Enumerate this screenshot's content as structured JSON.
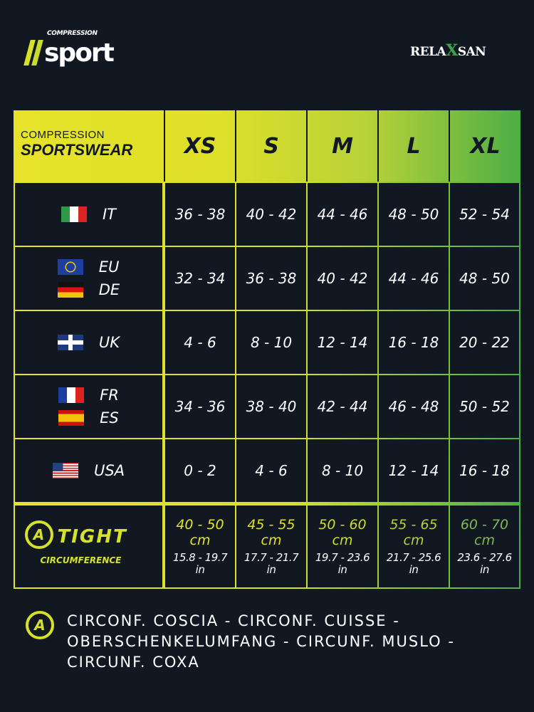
{
  "header": {
    "brand_logo": {
      "top": "COMPRESSION",
      "main": "sport"
    },
    "partner_logo": {
      "left": "RELA",
      "x": "X",
      "right": "SAN"
    }
  },
  "table": {
    "title_line1": "COMPRESSION",
    "title_line2": "SPORTSWEAR",
    "sizes": [
      "XS",
      "S",
      "M",
      "L",
      "XL"
    ],
    "rows": [
      {
        "countries": [
          "IT"
        ],
        "flags": [
          "flag-italy"
        ],
        "values": [
          "36 - 38",
          "40 - 42",
          "44 - 46",
          "48 - 50",
          "52 - 54"
        ]
      },
      {
        "countries": [
          "EU",
          "DE"
        ],
        "flags": [
          "flag-eu",
          "flag-germany"
        ],
        "values": [
          "32 - 34",
          "36 - 38",
          "40 - 42",
          "44 - 46",
          "48 - 50"
        ]
      },
      {
        "countries": [
          "UK"
        ],
        "flags": [
          "flag-uk"
        ],
        "values": [
          "4 - 6",
          "8 - 10",
          "12 - 14",
          "16 - 18",
          "20 - 22"
        ]
      },
      {
        "countries": [
          "FR",
          "ES"
        ],
        "flags": [
          "flag-france",
          "flag-spain"
        ],
        "values": [
          "34 - 36",
          "38 - 40",
          "42 - 44",
          "46 - 48",
          "50 - 52"
        ]
      },
      {
        "countries": [
          "USA"
        ],
        "flags": [
          "flag-usa"
        ],
        "values": [
          "0 - 2",
          "4 - 6",
          "8 - 10",
          "12 - 14",
          "16 - 18"
        ]
      }
    ],
    "tight": {
      "badge": "A",
      "label1": "TIGHT",
      "label2": "CIRCUMFERENCE",
      "cm": [
        "40 - 50",
        "45 - 55",
        "50 - 60",
        "55 - 65",
        "60 - 70"
      ],
      "cm_unit": "cm",
      "in": [
        "15.8 - 19.7",
        "17.7 - 21.7",
        "19.7 - 23.6",
        "21.7 - 25.6",
        "23.6 - 27.6"
      ],
      "in_unit": "in",
      "colors": [
        "#e4e42a",
        "#dfe02a",
        "#cfdc35",
        "#b5d23a",
        "#7dbb52"
      ]
    }
  },
  "legend": {
    "badge": "A",
    "text": "CIRCONF. COSCIA - CIRCONF. CUISSE - OBERSCHENKELUMFANG - CIRCUNF. MUSLO - CIRCUNF. COXA"
  },
  "colors": {
    "background": "#121822",
    "accent_yellow": "#d6e12a",
    "accent_green": "#4caf45"
  }
}
